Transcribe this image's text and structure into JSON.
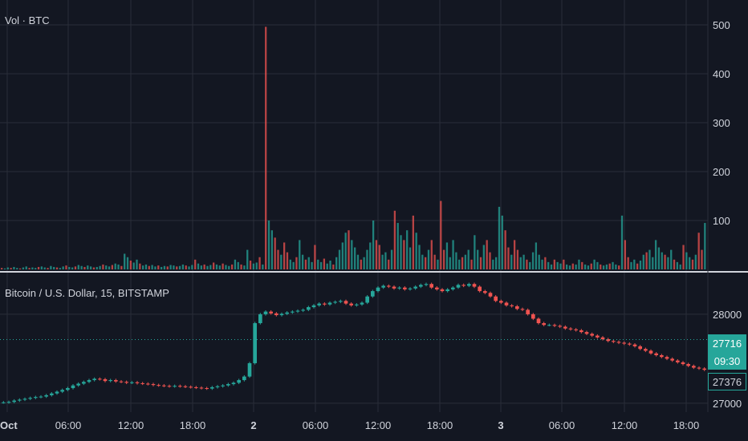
{
  "volume_pane": {
    "title": "Vol · BTC"
  },
  "price_pane": {
    "title": "Bitcoin / U.S. Dollar, 15, BITSTAMP"
  },
  "price_badges": {
    "current": "27716",
    "countdown": "09:30",
    "last": "27376"
  },
  "colors": {
    "up": "#26a69a",
    "down": "#ef5350",
    "background": "#131722",
    "grid": "#2a2e39",
    "text": "#d1d4dc"
  },
  "chart_data": [
    {
      "type": "bar",
      "title": "Vol · BTC",
      "ylim": [
        0,
        500
      ],
      "yticks": [
        "500",
        "400",
        "300",
        "200",
        "100"
      ],
      "grid": true,
      "series": [
        {
          "values": [
            3,
            2,
            4,
            3,
            5,
            3,
            2,
            4,
            6,
            3,
            4,
            3,
            5,
            6,
            4,
            3,
            7,
            5,
            4,
            3,
            6,
            8,
            5,
            4,
            6,
            9,
            7,
            5,
            8,
            6,
            4,
            5,
            7,
            10,
            8,
            6,
            9,
            12,
            10,
            7,
            32,
            25,
            18,
            14,
            20,
            12,
            8,
            10,
            7,
            9,
            6,
            8,
            5,
            7,
            6,
            9,
            8,
            6,
            7,
            10,
            8,
            6,
            9,
            20,
            12,
            8,
            10,
            7,
            9,
            14,
            10,
            8,
            12,
            9,
            7,
            10,
            20,
            15,
            10,
            8,
            40,
            18,
            12,
            14,
            25,
            10,
            496,
            100,
            80,
            65,
            40,
            30,
            55,
            35,
            20,
            15,
            25,
            60,
            30,
            20,
            25,
            15,
            50,
            20,
            15,
            22,
            12,
            18,
            10,
            25,
            40,
            55,
            75,
            80,
            60,
            45,
            30,
            20,
            25,
            40,
            55,
            100,
            60,
            50,
            30,
            35,
            20,
            40,
            120,
            95,
            70,
            60,
            80,
            45,
            110,
            75,
            50,
            30,
            25,
            40,
            60,
            30,
            20,
            140,
            40,
            55,
            25,
            60,
            35,
            20,
            25,
            30,
            40,
            20,
            70,
            40,
            25,
            50,
            60,
            35,
            20,
            25,
            128,
            110,
            80,
            45,
            30,
            60,
            40,
            25,
            30,
            20,
            15,
            35,
            55,
            30,
            20,
            25,
            15,
            10,
            20,
            15,
            12,
            20,
            10,
            8,
            12,
            10,
            20,
            15,
            10,
            8,
            12,
            20,
            15,
            10,
            8,
            10,
            12,
            15,
            10,
            8,
            110,
            60,
            25,
            15,
            20,
            12,
            18,
            30,
            35,
            40,
            25,
            60,
            45,
            35,
            30,
            25,
            40,
            20,
            15,
            10,
            50,
            35,
            25,
            20,
            30,
            75,
            40,
            95
          ]
        }
      ]
    },
    {
      "type": "candlestick",
      "title": "Bitcoin / U.S. Dollar, 15, BITSTAMP",
      "ylim": [
        26900,
        28450
      ],
      "yticks": [
        "28000",
        "27000"
      ],
      "x_ticks": [
        "Oct",
        "06:00",
        "12:00",
        "18:00",
        "2",
        "06:00",
        "12:00",
        "18:00",
        "3",
        "06:00",
        "12:00",
        "18:00"
      ],
      "grid": true,
      "closes": [
        27010,
        27015,
        27030,
        27040,
        27050,
        27060,
        27070,
        27075,
        27090,
        27110,
        27130,
        27150,
        27170,
        27200,
        27220,
        27240,
        27260,
        27275,
        27270,
        27250,
        27260,
        27245,
        27240,
        27230,
        27235,
        27225,
        27220,
        27215,
        27205,
        27200,
        27195,
        27190,
        27195,
        27190,
        27185,
        27180,
        27175,
        27170,
        27165,
        27180,
        27190,
        27200,
        27215,
        27230,
        27260,
        27300,
        27450,
        27900,
        28000,
        28030,
        28010,
        27990,
        28005,
        28020,
        28030,
        28040,
        28050,
        28080,
        28100,
        28120,
        28110,
        28130,
        28140,
        28150,
        28120,
        28100,
        28110,
        28130,
        28200,
        28260,
        28300,
        28320,
        28310,
        28290,
        28300,
        28280,
        28290,
        28310,
        28330,
        28340,
        28300,
        28280,
        28260,
        28280,
        28300,
        28330,
        28320,
        28340,
        28310,
        28260,
        28240,
        28200,
        28150,
        28130,
        28100,
        28090,
        28060,
        28050,
        28000,
        27950,
        27900,
        27880,
        27880,
        27870,
        27860,
        27840,
        27830,
        27820,
        27800,
        27780,
        27760,
        27740,
        27720,
        27700,
        27690,
        27680,
        27670,
        27660,
        27640,
        27610,
        27590,
        27560,
        27540,
        27520,
        27500,
        27480,
        27460,
        27440,
        27420,
        27400,
        27390,
        27376
      ]
    }
  ]
}
